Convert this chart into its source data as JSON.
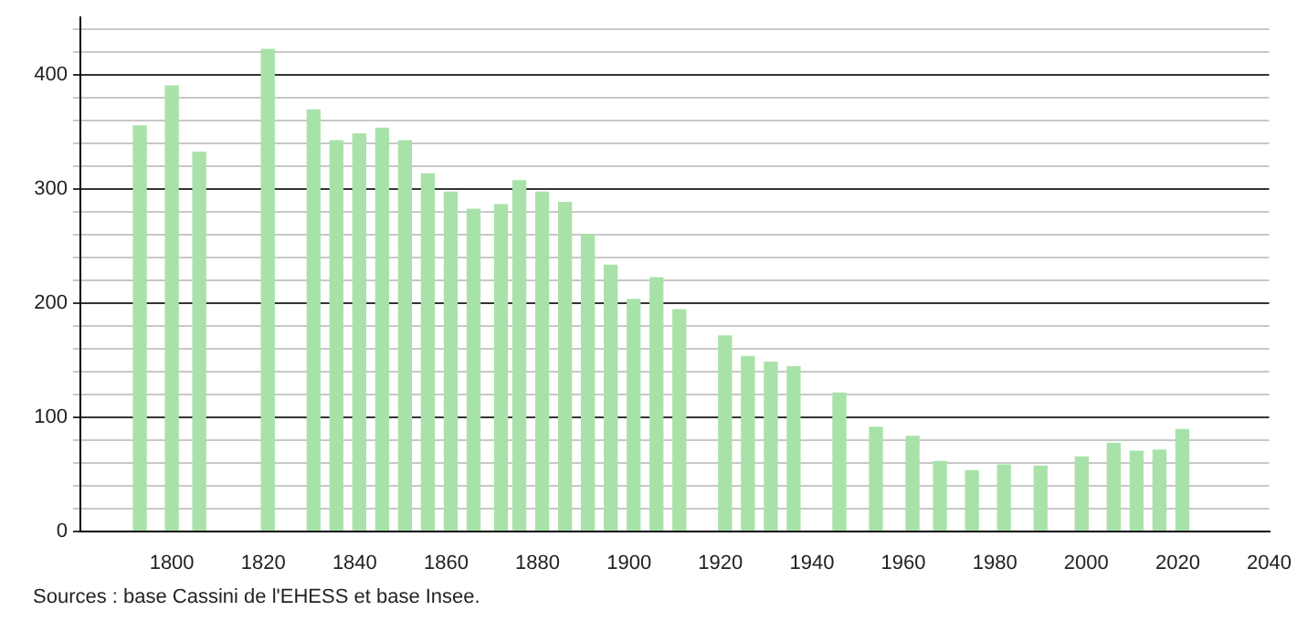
{
  "chart_data": {
    "type": "bar",
    "x": [
      1793,
      1800,
      1806,
      1821,
      1831,
      1836,
      1841,
      1846,
      1851,
      1856,
      1861,
      1866,
      1872,
      1876,
      1881,
      1886,
      1891,
      1896,
      1901,
      1906,
      1911,
      1921,
      1926,
      1931,
      1936,
      1946,
      1954,
      1962,
      1968,
      1975,
      1982,
      1990,
      1999,
      2006,
      2011,
      2016,
      2021
    ],
    "values": [
      355,
      390,
      332,
      422,
      369,
      342,
      348,
      353,
      342,
      313,
      297,
      282,
      286,
      307,
      297,
      288,
      260,
      233,
      203,
      222,
      194,
      171,
      153,
      148,
      144,
      121,
      91,
      83,
      61,
      53,
      58,
      57,
      65,
      77,
      70,
      71,
      89
    ],
    "color": "#a8e2a8",
    "xlim": [
      1780,
      2040
    ],
    "xticks": [
      1800,
      1820,
      1840,
      1860,
      1880,
      1900,
      1920,
      1940,
      1960,
      1980,
      2000,
      2020,
      2040
    ],
    "ylim": [
      0,
      450
    ],
    "yticks": [
      0,
      {
        "value": 20,
        "label": null
      },
      {
        "value": 40,
        "label": null
      },
      {
        "value": 60,
        "label": null
      },
      {
        "value": 80,
        "label": null
      },
      100,
      {
        "value": 120,
        "label": null
      },
      {
        "value": 140,
        "label": null
      },
      {
        "value": 160,
        "label": null
      },
      {
        "value": 180,
        "label": null
      },
      200,
      {
        "value": 220,
        "label": null
      },
      {
        "value": 240,
        "label": null
      },
      {
        "value": 260,
        "label": null
      },
      {
        "value": 280,
        "label": null
      },
      300,
      {
        "value": 320,
        "label": null
      },
      {
        "value": 340,
        "label": null
      },
      {
        "value": 360,
        "label": null
      },
      {
        "value": 380,
        "label": null
      },
      400,
      {
        "value": 420,
        "label": null
      },
      {
        "value": 440,
        "label": null
      }
    ],
    "grid": "y",
    "legend": false,
    "annotations": [
      "Sources : base Cassini de l'EHESS et base Insee."
    ]
  }
}
